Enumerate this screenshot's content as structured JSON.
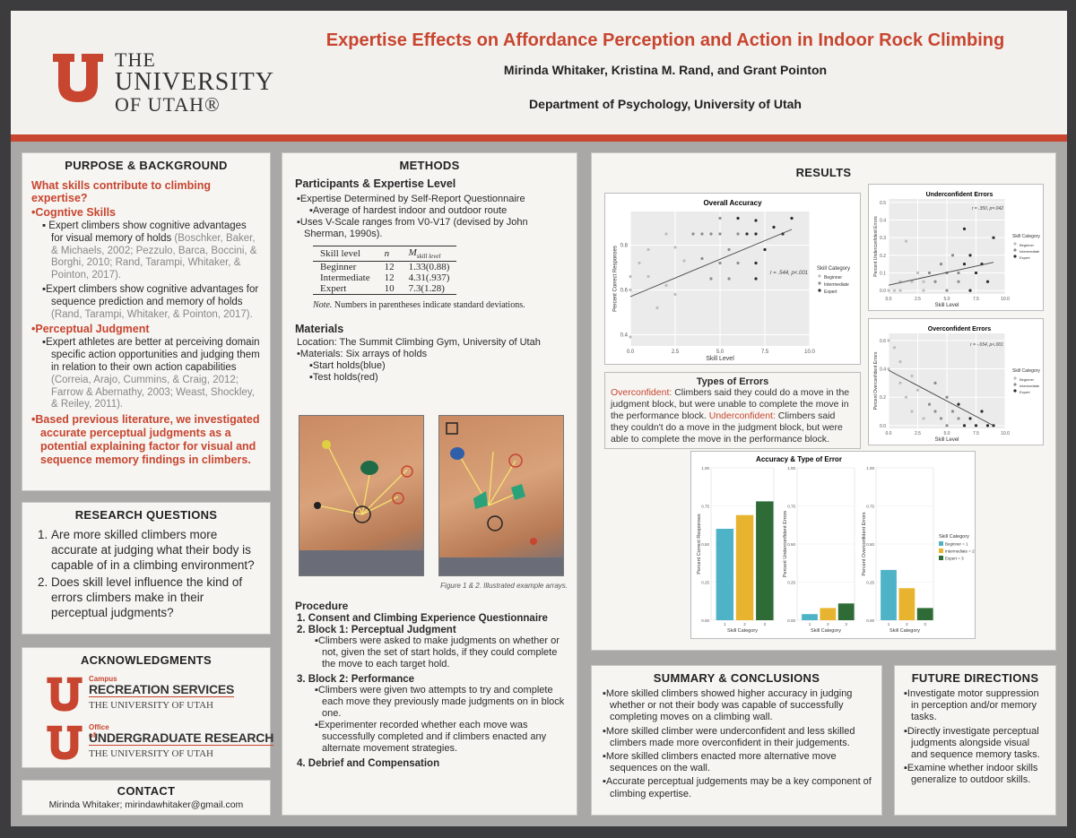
{
  "header": {
    "univ_line1": "THE",
    "univ_line2": "UNIVERSITY",
    "univ_line3": "OF UTAH®",
    "title": "Expertise Effects on Affordance Perception and Action in Indoor Rock Climbing",
    "authors": "Mirinda Whitaker, Kristina M. Rand, and Grant Pointon",
    "department": "Department of Psychology, University of Utah",
    "colors": {
      "accent": "#c8452f",
      "background": "#f2f1ee"
    }
  },
  "purpose": {
    "heading": "PURPOSE & BACKGROUND",
    "question": "What skills contribute to climbing expertise?",
    "cognitive_heading": "Cogntive Skills",
    "cognitive_items": [
      {
        "text": "Expert climbers show cognitive advantages for visual memory of holds ",
        "cite": "(Boschker, Baker, & Michaels, 2002; Pezzulo, Barca, Boccini, & Borghi, 2010; Rand, Tarampi, Whitaker, & Pointon, 2017)."
      },
      {
        "text": "Expert climbers show cognitive advantages for sequence prediction and memory of holds ",
        "cite": "(Rand, Tarampi, Whitaker, & Pointon, 2017)."
      }
    ],
    "perceptual_heading": "Perceptual Judgment",
    "perceptual_items": [
      {
        "text": "Expert athletes are better at perceiving domain specific action opportunities and judging them in relation to their own action capabilities ",
        "cite": "(Correia, Arajo, Cummins, & Craig, 2012; Farrow & Abernathy, 2003; Weast, Shockley, & Reiley, 2011)."
      }
    ],
    "conclusion": "Based previous literature, we investigated accurate perceptual judgments as a potential explaining factor for visual and sequence memory findings in climbers."
  },
  "research_questions": {
    "heading": "RESEARCH QUESTIONS",
    "items": [
      "Are more skilled climbers more accurate at judging what their body is capable of in a climbing environment?",
      "Does skill level influence the kind of errors climbers make in their perceptual judgments?"
    ]
  },
  "acknowledgments": {
    "heading": "ACKNOWLEDGMENTS",
    "org1": {
      "top": "Campus",
      "name": "RECREATION SERVICES",
      "sub": "THE UNIVERSITY OF UTAH"
    },
    "org2": {
      "top": "Office of",
      "name": "UNDERGRADUATE RESEARCH",
      "sub": "THE UNIVERSITY OF UTAH"
    }
  },
  "contact": {
    "heading": "CONTACT",
    "text": "Mirinda Whitaker; mirindawhitaker@gmail.com"
  },
  "methods": {
    "heading": "METHODS",
    "participants_heading": "Participants & Expertise Level",
    "items": [
      "Expertise Determined by Self-Report Questionnaire",
      "Average of hardest indoor and outdoor route",
      "Uses V-Scale ranges from V0-V17 (devised by John Sherman, 1990s)."
    ],
    "table": {
      "headers": [
        "Skill level",
        "n",
        "M"
      ],
      "header_m_sub": "skill level",
      "rows": [
        [
          "Beginner",
          "12",
          "1.33(0.88)"
        ],
        [
          "Intermediate",
          "12",
          "4.31(.937)"
        ],
        [
          "Expert",
          "10",
          "7.3(1.28)"
        ]
      ],
      "note_label": "Note.",
      "note": " Numbers in parentheses indicate standard deviations."
    },
    "materials_heading": "Materials",
    "location": "Location: The Summit Climbing Gym, University of Utah",
    "materials": "Materials: Six arrays of holds",
    "start_holds": "Start holds(blue)",
    "test_holds": "Test holds(red)",
    "figure_caption": "Figure 1 & 2. Illustrated example arrays.",
    "procedure_heading": "Procedure",
    "procedure": [
      {
        "label": "1. Consent and Climbing Experience Questionnaire",
        "items": []
      },
      {
        "label": "2. Block 1: Perceptual Judgment",
        "items": [
          "Climbers were asked to make judgments on whether or not, given the set of start holds, if they could complete the move to each target hold."
        ]
      },
      {
        "label": "3. Block 2: Performance",
        "items": [
          "Climbers were given two attempts to try and complete each move they previously made judgments on in block one.",
          "Experimenter recorded whether each move was successfully completed and if climbers enacted any alternate movement strategies."
        ]
      },
      {
        "label": "4. Debrief and Compensation",
        "items": []
      }
    ]
  },
  "results": {
    "heading": "RESULTS",
    "types_heading": "Types of Errors",
    "overconfident_label": "Overconfident:",
    "overconfident_text": " Climbers said they could do a move in the judgment block, but were unable to complete the move in the performance block.",
    "underconfident_label": "Underconfident:",
    "underconfident_text": " Climbers said they couldn't do a move in the judgment block, but were able to complete the move in the performance block."
  },
  "chart_data": [
    {
      "type": "scatter",
      "title": "Overall Accuracy",
      "xlabel": "Skill Level",
      "ylabel": "Percent Correct Responses",
      "xlim": [
        0,
        10
      ],
      "ylim": [
        0.35,
        0.95
      ],
      "xticks": [
        "0.0",
        "2.5",
        "5.0",
        "7.5",
        "10.0"
      ],
      "yticks": [
        "0.4",
        "0.6",
        "0.8"
      ],
      "annotation": "r = .544, p<.001",
      "legend_title": "Skill Category",
      "legend": [
        "Beginner",
        "Intermediate",
        "Expert"
      ],
      "legend_position": "right",
      "fit": {
        "x": [
          0,
          9
        ],
        "y": [
          0.57,
          0.87
        ]
      },
      "points": [
        {
          "x": 0,
          "y": 0.39,
          "c": 1
        },
        {
          "x": 0,
          "y": 0.66,
          "c": 1
        },
        {
          "x": 0,
          "y": 0.6,
          "c": 1
        },
        {
          "x": 0.5,
          "y": 0.72,
          "c": 1
        },
        {
          "x": 1,
          "y": 0.78,
          "c": 1
        },
        {
          "x": 1,
          "y": 0.66,
          "c": 1
        },
        {
          "x": 1.5,
          "y": 0.52,
          "c": 1
        },
        {
          "x": 2,
          "y": 0.62,
          "c": 1
        },
        {
          "x": 2.5,
          "y": 0.58,
          "c": 1
        },
        {
          "x": 2,
          "y": 0.85,
          "c": 1
        },
        {
          "x": 3,
          "y": 0.73,
          "c": 1
        },
        {
          "x": 2.5,
          "y": 0.79,
          "c": 1
        },
        {
          "x": 3.5,
          "y": 0.85,
          "c": 2
        },
        {
          "x": 4,
          "y": 0.85,
          "c": 2
        },
        {
          "x": 4,
          "y": 0.74,
          "c": 2
        },
        {
          "x": 4.5,
          "y": 0.65,
          "c": 2
        },
        {
          "x": 4.5,
          "y": 0.85,
          "c": 2
        },
        {
          "x": 5,
          "y": 0.72,
          "c": 2
        },
        {
          "x": 5,
          "y": 0.85,
          "c": 2
        },
        {
          "x": 5.5,
          "y": 0.78,
          "c": 2
        },
        {
          "x": 5.5,
          "y": 0.65,
          "c": 2
        },
        {
          "x": 6,
          "y": 0.72,
          "c": 2
        },
        {
          "x": 6,
          "y": 0.85,
          "c": 2
        },
        {
          "x": 5,
          "y": 0.92,
          "c": 2
        },
        {
          "x": 6,
          "y": 0.92,
          "c": 3
        },
        {
          "x": 6.5,
          "y": 0.85,
          "c": 3
        },
        {
          "x": 7,
          "y": 0.91,
          "c": 3
        },
        {
          "x": 7,
          "y": 0.65,
          "c": 3
        },
        {
          "x": 7,
          "y": 0.72,
          "c": 3
        },
        {
          "x": 7.5,
          "y": 0.78,
          "c": 3
        },
        {
          "x": 8,
          "y": 0.88,
          "c": 3
        },
        {
          "x": 8.5,
          "y": 0.85,
          "c": 3
        },
        {
          "x": 9,
          "y": 0.92,
          "c": 3
        },
        {
          "x": 7,
          "y": 0.85,
          "c": 3
        }
      ]
    },
    {
      "type": "scatter",
      "title": "Underconfident Errors",
      "xlabel": "Skill Level",
      "ylabel": "Percent Underconfident Errors",
      "xlim": [
        0,
        10
      ],
      "ylim": [
        -0.02,
        0.52
      ],
      "xticks": [
        "0.0",
        "2.5",
        "5.0",
        "7.5",
        "10.0"
      ],
      "yticks": [
        "0.0",
        "0.1",
        "0.2",
        "0.3",
        "0.4",
        "0.5"
      ],
      "annotation": "r = .350, p=.042",
      "legend_title": "Skill Category",
      "legend": [
        "Beginner",
        "Intermediate",
        "Expert"
      ],
      "legend_position": "right",
      "fit": {
        "x": [
          0,
          9
        ],
        "y": [
          0.03,
          0.16
        ]
      },
      "points": [
        {
          "x": 0,
          "y": 0.0,
          "c": 1
        },
        {
          "x": 0.5,
          "y": 0.0,
          "c": 1
        },
        {
          "x": 1,
          "y": 0.05,
          "c": 1
        },
        {
          "x": 1,
          "y": 0.0,
          "c": 1
        },
        {
          "x": 1.5,
          "y": 0.28,
          "c": 1
        },
        {
          "x": 2,
          "y": 0.05,
          "c": 1
        },
        {
          "x": 2.5,
          "y": 0.1,
          "c": 1
        },
        {
          "x": 3,
          "y": 0.05,
          "c": 1
        },
        {
          "x": 3,
          "y": 0.0,
          "c": 1
        },
        {
          "x": 3.5,
          "y": 0.1,
          "c": 2
        },
        {
          "x": 4,
          "y": 0.05,
          "c": 2
        },
        {
          "x": 4.5,
          "y": 0.15,
          "c": 2
        },
        {
          "x": 5,
          "y": 0.1,
          "c": 2
        },
        {
          "x": 5,
          "y": 0.0,
          "c": 2
        },
        {
          "x": 5.5,
          "y": 0.2,
          "c": 2
        },
        {
          "x": 6,
          "y": 0.1,
          "c": 2
        },
        {
          "x": 6,
          "y": 0.05,
          "c": 2
        },
        {
          "x": 6.5,
          "y": 0.15,
          "c": 3
        },
        {
          "x": 7,
          "y": 0.0,
          "c": 3
        },
        {
          "x": 7,
          "y": 0.2,
          "c": 3
        },
        {
          "x": 7.5,
          "y": 0.1,
          "c": 3
        },
        {
          "x": 8,
          "y": 0.15,
          "c": 3
        },
        {
          "x": 8.5,
          "y": 0.05,
          "c": 3
        },
        {
          "x": 9,
          "y": 0.3,
          "c": 3
        },
        {
          "x": 6.5,
          "y": 0.35,
          "c": 3
        }
      ]
    },
    {
      "type": "scatter",
      "title": "Overconfident Errors",
      "xlabel": "Skill Level",
      "ylabel": "Percent Overconfident Errors",
      "xlim": [
        0,
        10
      ],
      "ylim": [
        -0.02,
        0.65
      ],
      "xticks": [
        "0.0",
        "2.5",
        "5.0",
        "7.5",
        "10.0"
      ],
      "yticks": [
        "0.0",
        "0.2",
        "0.4",
        "0.6"
      ],
      "annotation": "r = -.654, p<.001",
      "legend_title": "Skill Category",
      "legend": [
        "Beginner",
        "Intermediate",
        "Expert"
      ],
      "legend_position": "right",
      "fit": {
        "x": [
          0,
          9
        ],
        "y": [
          0.39,
          0.0
        ]
      },
      "points": [
        {
          "x": 0,
          "y": 0.6,
          "c": 1
        },
        {
          "x": 0,
          "y": 0.4,
          "c": 1
        },
        {
          "x": 0.5,
          "y": 0.55,
          "c": 1
        },
        {
          "x": 1,
          "y": 0.3,
          "c": 1
        },
        {
          "x": 1,
          "y": 0.45,
          "c": 1
        },
        {
          "x": 1.5,
          "y": 0.2,
          "c": 1
        },
        {
          "x": 2,
          "y": 0.35,
          "c": 1
        },
        {
          "x": 2,
          "y": 0.1,
          "c": 1
        },
        {
          "x": 2.5,
          "y": 0.25,
          "c": 1
        },
        {
          "x": 3,
          "y": 0.05,
          "c": 1
        },
        {
          "x": 3.5,
          "y": 0.15,
          "c": 2
        },
        {
          "x": 4,
          "y": 0.1,
          "c": 2
        },
        {
          "x": 4,
          "y": 0.3,
          "c": 2
        },
        {
          "x": 4.5,
          "y": 0.05,
          "c": 2
        },
        {
          "x": 5,
          "y": 0.2,
          "c": 2
        },
        {
          "x": 5,
          "y": 0.0,
          "c": 2
        },
        {
          "x": 5.5,
          "y": 0.1,
          "c": 2
        },
        {
          "x": 6,
          "y": 0.05,
          "c": 2
        },
        {
          "x": 6,
          "y": 0.15,
          "c": 3
        },
        {
          "x": 6.5,
          "y": 0.0,
          "c": 3
        },
        {
          "x": 7,
          "y": 0.05,
          "c": 3
        },
        {
          "x": 7.5,
          "y": 0.0,
          "c": 3
        },
        {
          "x": 8,
          "y": 0.1,
          "c": 3
        },
        {
          "x": 8.5,
          "y": 0.0,
          "c": 3
        },
        {
          "x": 9,
          "y": 0.0,
          "c": 3
        }
      ]
    },
    {
      "type": "bar",
      "title": "Accuracy & Type of Error",
      "xlabel": "Skill Category",
      "categories": [
        "1",
        "2",
        "3"
      ],
      "ylim": [
        0,
        1
      ],
      "yticks": [
        "0.00",
        "0.25",
        "0.50",
        "0.75",
        "1.00"
      ],
      "legend_title": "Skill Category",
      "legend": [
        "Beginner = 1",
        "Intermediate = 2",
        "Expert = 3"
      ],
      "legend_position": "right",
      "colors": [
        "#4fb3c8",
        "#e8b32e",
        "#2f6b36"
      ],
      "panels": [
        {
          "ylabel": "Percent Correct Responses",
          "values": [
            0.6,
            0.69,
            0.78
          ]
        },
        {
          "ylabel": "Percent Underconfident Errors",
          "values": [
            0.04,
            0.08,
            0.11
          ]
        },
        {
          "ylabel": "Percent Overconfident Errors",
          "values": [
            0.33,
            0.21,
            0.08
          ]
        }
      ]
    }
  ],
  "summary": {
    "heading": "SUMMARY & CONCLUSIONS",
    "items": [
      "More skilled climbers showed higher accuracy in judging whether or not their body was capable of successfully completing moves on a climbing wall.",
      "More skilled climber were underconfident and less skilled climbers made more overconfident in their judgements.",
      "More skilled climbers enacted more alternative move sequences on the wall.",
      "Accurate perceptual judgements may be a key component of climbing expertise."
    ]
  },
  "future": {
    "heading": "FUTURE DIRECTIONS",
    "items": [
      "Investigate motor suppression in perception and/or memory tasks.",
      "Directly investigate perceptual judgments alongside visual and sequence memory tasks.",
      "Examine whether indoor skills generalize to outdoor skills."
    ]
  },
  "scatter_colors": [
    "#bdbdbd",
    "#8c8c8c",
    "#2b2b2b"
  ]
}
